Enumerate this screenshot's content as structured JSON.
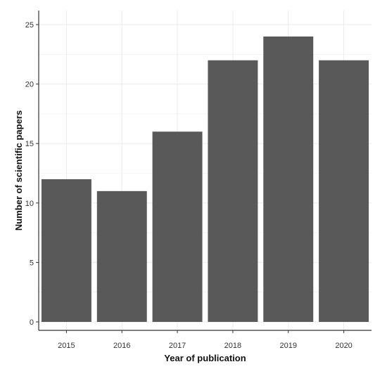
{
  "chart_data": {
    "type": "bar",
    "categories": [
      "2015",
      "2016",
      "2017",
      "2018",
      "2019",
      "2020"
    ],
    "values": [
      12,
      11,
      16,
      22,
      24,
      22
    ],
    "title": "",
    "xlabel": "Year of publication",
    "ylabel": "Number of scientific papers",
    "ylim": [
      0,
      25
    ],
    "yticks": [
      0,
      5,
      10,
      15,
      20,
      25
    ],
    "ytick_labels": [
      "0",
      "5",
      "10",
      "15",
      "20",
      "25"
    ],
    "grid": true,
    "legend": "none",
    "bar_color": "#595959",
    "grid_color": "#ebebeb",
    "axis_color": "#333333"
  }
}
